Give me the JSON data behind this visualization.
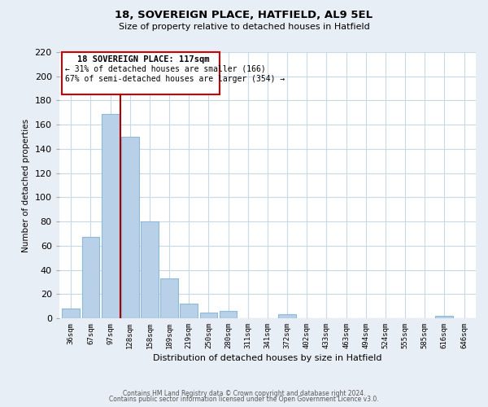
{
  "title": "18, SOVEREIGN PLACE, HATFIELD, AL9 5EL",
  "subtitle": "Size of property relative to detached houses in Hatfield",
  "xlabel": "Distribution of detached houses by size in Hatfield",
  "ylabel": "Number of detached properties",
  "bar_labels": [
    "36sqm",
    "67sqm",
    "97sqm",
    "128sqm",
    "158sqm",
    "189sqm",
    "219sqm",
    "250sqm",
    "280sqm",
    "311sqm",
    "341sqm",
    "372sqm",
    "402sqm",
    "433sqm",
    "463sqm",
    "494sqm",
    "524sqm",
    "555sqm",
    "585sqm",
    "616sqm",
    "646sqm"
  ],
  "bar_values": [
    8,
    67,
    169,
    150,
    80,
    33,
    12,
    5,
    6,
    0,
    0,
    3,
    0,
    0,
    0,
    0,
    0,
    0,
    0,
    2,
    0
  ],
  "bar_color": "#b8d0e8",
  "vline_x": 2.5,
  "annotation_title": "18 SOVEREIGN PLACE: 117sqm",
  "annotation_line1": "← 31% of detached houses are smaller (166)",
  "annotation_line2": "67% of semi-detached houses are larger (354) →",
  "vline_color": "#aa0000",
  "box_color": "#cc0000",
  "ylim": [
    0,
    220
  ],
  "yticks": [
    0,
    20,
    40,
    60,
    80,
    100,
    120,
    140,
    160,
    180,
    200,
    220
  ],
  "footer1": "Contains HM Land Registry data © Crown copyright and database right 2024.",
  "footer2": "Contains public sector information licensed under the Open Government Licence v3.0.",
  "bg_color": "#e8eef5",
  "plot_bg": "#ffffff",
  "grid_color": "#c8d8e8"
}
